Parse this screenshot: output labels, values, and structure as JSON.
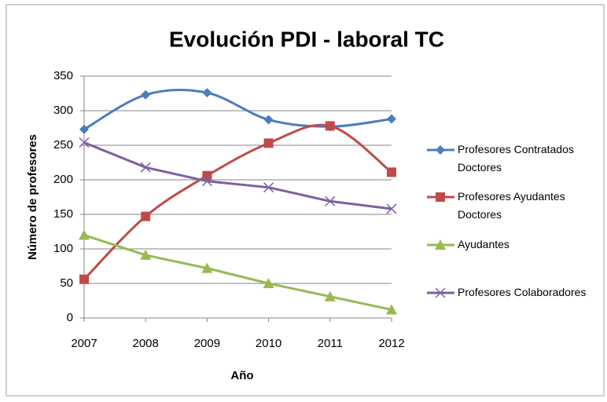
{
  "chart_data": {
    "type": "line",
    "title": "Evolución PDI - laboral TC",
    "xlabel": "Año",
    "ylabel": "Número de profesores",
    "categories": [
      "2007",
      "2008",
      "2009",
      "2010",
      "2011",
      "2012"
    ],
    "series": [
      {
        "name": "Profesores Contratados Doctores",
        "color": "#4a7ebb",
        "marker": "diamond",
        "smooth": true,
        "values": [
          273,
          323,
          326,
          287,
          277,
          288
        ]
      },
      {
        "name": "Profesores Ayudantes Doctores",
        "color": "#be4b48",
        "marker": "square",
        "smooth": true,
        "values": [
          56,
          147,
          206,
          253,
          278,
          211
        ]
      },
      {
        "name": "Ayudantes",
        "color": "#98b954",
        "marker": "triangle",
        "smooth": false,
        "values": [
          120,
          91,
          72,
          50,
          31,
          12
        ]
      },
      {
        "name": "Profesores Colaboradores",
        "color": "#7d60a0",
        "marker": "x",
        "smooth": false,
        "values": [
          254,
          218,
          198,
          189,
          169,
          158
        ]
      }
    ],
    "ylim": [
      0,
      350
    ],
    "yticks": [
      0,
      50,
      100,
      150,
      200,
      250,
      300,
      350
    ],
    "grid": true,
    "legend": "right"
  }
}
